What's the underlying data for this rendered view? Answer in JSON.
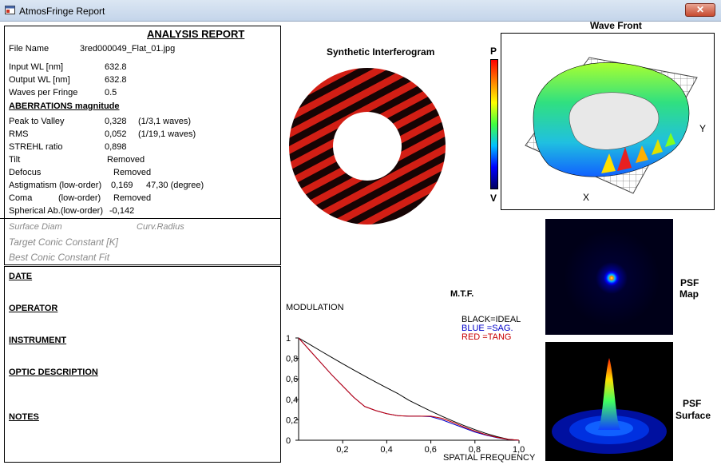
{
  "window": {
    "title": "AtmosFringe  Report",
    "close_glyph": "✕"
  },
  "report": {
    "heading": "ANALYSIS  REPORT",
    "file_name_label": "File Name",
    "file_name": "3red000049_Flat_01.jpg",
    "input_wl_label": "Input  WL [nm]",
    "input_wl": "632.8",
    "output_wl_label": "Output WL [nm]",
    "output_wl": "632.8",
    "waves_label": "Waves per Fringe",
    "waves": "0.5",
    "aberr_heading": "ABERRATIONS magnitude",
    "ptv_label": "Peak to Valley",
    "ptv_value": "0,328",
    "ptv_waves": "(1/3,1 waves)",
    "rms_label": "RMS",
    "rms_value": "0,052",
    "rms_waves": "(1/19,1 waves)",
    "strehl_label": "STREHL ratio",
    "strehl_value": "0,898",
    "tilt_label": "Tilt",
    "tilt_value": "Removed",
    "defocus_label": "Defocus",
    "defocus_value": "Removed",
    "astig_label": "Astigmatism  (low-order)",
    "astig_value": "0,169",
    "astig_angle": "47,30  (degree)",
    "coma_label": "Coma",
    "coma_order": "(low-order)",
    "coma_value": "Removed",
    "spherical_label": "Spherical Ab.(low-order)",
    "spherical_value": "-0,142",
    "surface_diam": "Surface Diam",
    "curv_radius": "Curv.Radius",
    "target_conic": "Target Conic Constant [K]",
    "best_conic": "Best Conic Constant Fit"
  },
  "notes": {
    "date": "DATE",
    "operator": "OPERATOR",
    "instrument": "INSTRUMENT",
    "optic_description": "OPTIC DESCRIPTION",
    "notes": "NOTES"
  },
  "interferogram": {
    "title": "Synthetic Interferogram"
  },
  "colorbar": {
    "top": "P",
    "bottom": "V"
  },
  "wavefront": {
    "title": "Wave Front",
    "x_label": "X",
    "y_label": "Y"
  },
  "psf": {
    "map_label_1": "PSF",
    "map_label_2": "Map",
    "surface_label_1": "PSF",
    "surface_label_2": "Surface"
  },
  "mtf_legend": {
    "black": "BLACK=IDEAL",
    "blue": "BLUE  =SAG.",
    "red": "RED    =TANG"
  },
  "chart_data": {
    "type": "line",
    "title": "M.T.F.",
    "xlabel": "SPATIAL FREQUENCY",
    "ylabel": "MODULATION",
    "xlim": [
      0,
      1
    ],
    "ylim": [
      0,
      1
    ],
    "x_ticks": [
      "0,2",
      "0,4",
      "0,6",
      "0,8",
      "1,0"
    ],
    "y_ticks": [
      "0",
      "0,2",
      "0,4",
      "0,6",
      "0,8",
      "1"
    ],
    "x": [
      0,
      0.05,
      0.1,
      0.15,
      0.2,
      0.25,
      0.3,
      0.35,
      0.4,
      0.45,
      0.5,
      0.55,
      0.6,
      0.65,
      0.7,
      0.75,
      0.8,
      0.85,
      0.9,
      0.95,
      1.0
    ],
    "series": [
      {
        "name": "IDEAL",
        "color": "#000000",
        "values": [
          1.0,
          0.937,
          0.873,
          0.81,
          0.748,
          0.687,
          0.627,
          0.569,
          0.512,
          0.457,
          0.391,
          0.337,
          0.285,
          0.235,
          0.188,
          0.144,
          0.104,
          0.067,
          0.035,
          0.01,
          0.0
        ]
      },
      {
        "name": "SAG.",
        "color": "#0000c8",
        "values": [
          1.0,
          0.88,
          0.76,
          0.64,
          0.53,
          0.42,
          0.33,
          0.29,
          0.26,
          0.24,
          0.235,
          0.235,
          0.23,
          0.2,
          0.16,
          0.12,
          0.08,
          0.05,
          0.025,
          0.008,
          0.0
        ]
      },
      {
        "name": "TANG",
        "color": "#c80000",
        "values": [
          1.0,
          0.88,
          0.76,
          0.64,
          0.53,
          0.42,
          0.33,
          0.29,
          0.26,
          0.24,
          0.235,
          0.235,
          0.235,
          0.215,
          0.175,
          0.13,
          0.09,
          0.055,
          0.028,
          0.009,
          0.0
        ]
      }
    ]
  }
}
